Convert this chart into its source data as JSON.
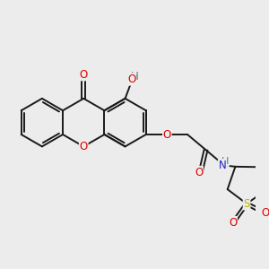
{
  "bg": "#ececec",
  "bond_color": "#1a1a1a",
  "atom_colors": {
    "O": "#e00000",
    "N": "#2020cc",
    "S": "#b8b800",
    "H_OH": "#4a8080",
    "H_NH": "#4a8080"
  },
  "lw": 1.4,
  "fs": 8.5,
  "figsize": [
    3.0,
    3.0
  ],
  "dpi": 100
}
